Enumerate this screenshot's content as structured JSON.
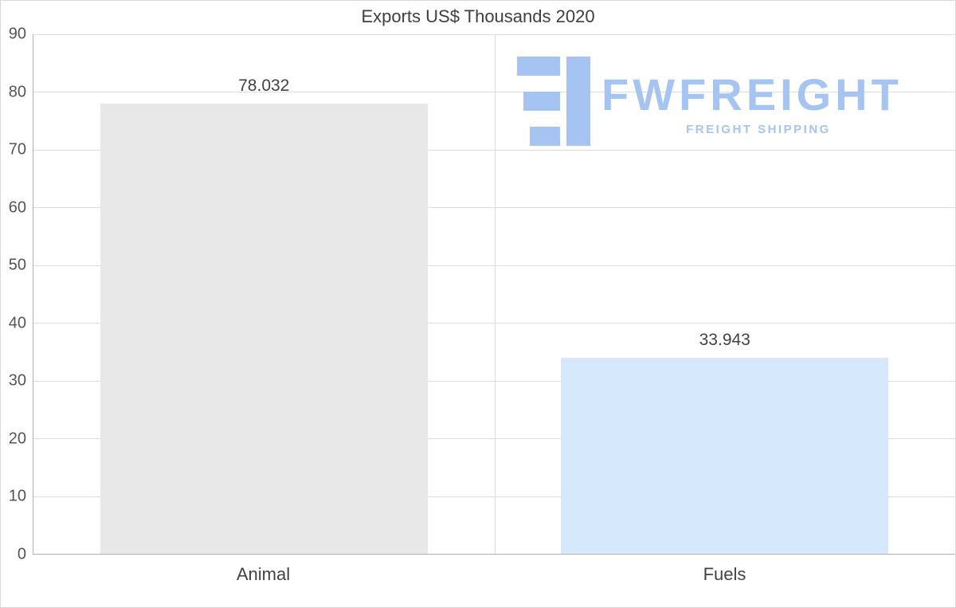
{
  "chart_data": {
    "type": "bar",
    "title": "Exports US$ Thousands 2020",
    "categories": [
      "Animal",
      "Fuels"
    ],
    "values": [
      78.032,
      33.943
    ],
    "value_labels": [
      "78.032",
      "33.943"
    ],
    "bar_colors": [
      "#e8e8e8",
      "#d6e8fb"
    ],
    "xlabel": "",
    "ylabel": "",
    "ylim": [
      0,
      90
    ],
    "yticks": [
      0,
      10,
      20,
      30,
      40,
      50,
      60,
      70,
      80,
      90
    ],
    "grid": true,
    "legend": false
  },
  "watermark": {
    "brand": "FWFREIGHT",
    "tagline": "FREIGHT SHIPPING",
    "color": "#a6c4f2"
  }
}
